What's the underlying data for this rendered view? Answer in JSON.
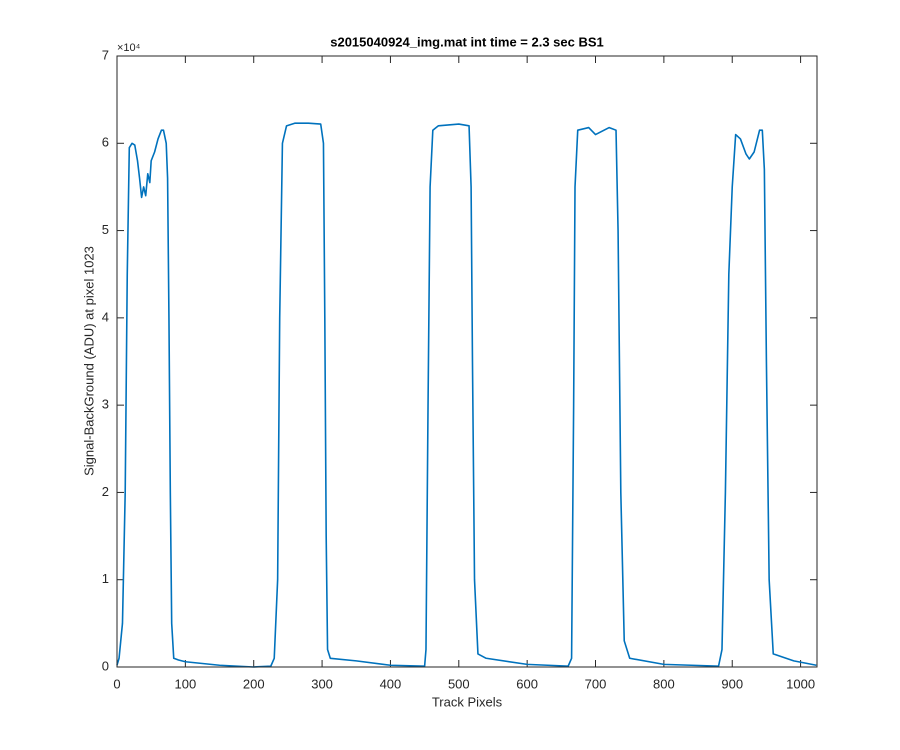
{
  "chart_data": {
    "type": "line",
    "title": "s2015040924_img.mat int time = 2.3 sec   BS1",
    "x_label": "Track Pixels",
    "y_label": "Signal-BackGround (ADU) at pixel 1023",
    "y_exponent_label": "×10⁴",
    "xlim": [
      0,
      1024
    ],
    "xticks": [
      0,
      100,
      200,
      300,
      400,
      500,
      600,
      700,
      800,
      900,
      1000
    ],
    "ylim": [
      0,
      70000
    ],
    "yticks": [
      {
        "value": 0,
        "label": "0"
      },
      {
        "value": 10000,
        "label": "1"
      },
      {
        "value": 20000,
        "label": "2"
      },
      {
        "value": 30000,
        "label": "3"
      },
      {
        "value": 40000,
        "label": "4"
      },
      {
        "value": 50000,
        "label": "5"
      },
      {
        "value": 60000,
        "label": "6"
      },
      {
        "value": 70000,
        "label": "7"
      }
    ],
    "color": "#0072bd",
    "x": [
      0,
      3,
      8,
      12,
      15,
      18,
      22,
      26,
      30,
      33,
      36,
      39,
      42,
      45,
      48,
      50,
      55,
      60,
      65,
      68,
      72,
      74,
      76,
      78,
      80,
      83,
      90,
      100,
      150,
      200,
      225,
      230,
      235,
      238,
      242,
      248,
      260,
      280,
      298,
      302,
      304,
      306,
      308,
      312,
      350,
      400,
      450,
      452,
      455,
      458,
      462,
      470,
      500,
      515,
      518,
      520,
      523,
      528,
      540,
      600,
      660,
      665,
      668,
      670,
      674,
      690,
      700,
      705,
      720,
      730,
      733,
      737,
      742,
      750,
      800,
      880,
      885,
      890,
      895,
      900,
      905,
      912,
      920,
      925,
      932,
      940,
      944,
      947,
      950,
      954,
      960,
      990,
      1010,
      1023
    ],
    "values": [
      200,
      1000,
      5000,
      20000,
      45000,
      59500,
      60000,
      59800,
      58000,
      56000,
      53800,
      55000,
      54000,
      56500,
      55500,
      58000,
      59000,
      60500,
      61500,
      61500,
      60000,
      56000,
      40000,
      20000,
      5000,
      1000,
      800,
      600,
      200,
      0,
      100,
      1000,
      10000,
      40000,
      60000,
      62000,
      62300,
      62300,
      62200,
      60000,
      40000,
      15000,
      2000,
      1000,
      700,
      200,
      100,
      2000,
      30000,
      55000,
      61500,
      62000,
      62200,
      62000,
      55000,
      35000,
      10000,
      1500,
      1000,
      300,
      100,
      1000,
      30000,
      55000,
      61500,
      61800,
      61000,
      61200,
      61800,
      61500,
      50000,
      20000,
      3000,
      1000,
      300,
      100,
      2000,
      20000,
      45000,
      55000,
      61000,
      60500,
      58800,
      58200,
      59000,
      61500,
      61500,
      57000,
      35000,
      10000,
      1500,
      700,
      400,
      200
    ]
  }
}
